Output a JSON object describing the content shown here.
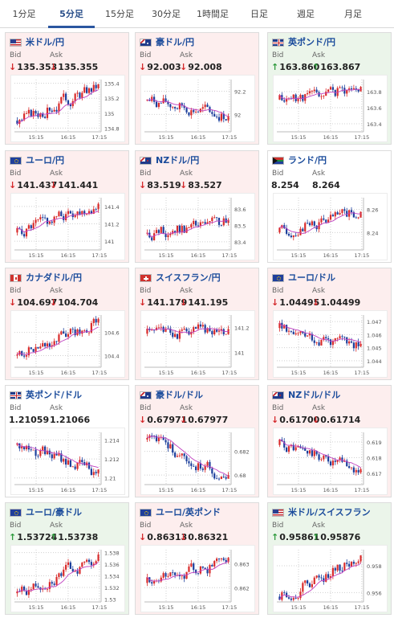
{
  "tabs": [
    "1分足",
    "5分足",
    "15分足",
    "30分足",
    "1時間足",
    "日足",
    "週足",
    "月足"
  ],
  "active_tab": 1,
  "x_labels": [
    "15:15",
    "16:15",
    "17:15"
  ],
  "labels": {
    "bid": "Bid",
    "ask": "Ask"
  },
  "colors": {
    "up_candle": "#d92b2b",
    "down_candle": "#1c3f9c",
    "ma_line": "#c040c0",
    "bid_down": "#d4272a",
    "bid_up": "#2e9a3c"
  },
  "cards": [
    {
      "pair": "米ドル/円",
      "flag": "us",
      "dir": "down",
      "bid": "135.353",
      "ask": "135.355",
      "ticks": [
        "135.4",
        "135.2",
        "135",
        "134.8"
      ],
      "yrange": [
        134.75,
        135.45
      ],
      "start": 134.9,
      "end": 135.38,
      "seed": 3
    },
    {
      "pair": "豪ドル/円",
      "flag": "au",
      "dir": "down",
      "bid": "92.003",
      "ask": "92.008",
      "ticks": [
        "92.2",
        "92"
      ],
      "yrange": [
        91.85,
        92.3
      ],
      "start": 92.12,
      "end": 91.98,
      "seed": 7
    },
    {
      "pair": "英ポンド/円",
      "flag": "gb",
      "dir": "up",
      "bid": "163.860",
      "ask": "163.867",
      "ticks": [
        "163.8",
        "163.6",
        "163.4"
      ],
      "yrange": [
        163.3,
        163.95
      ],
      "start": 163.7,
      "end": 163.85,
      "seed": 11
    },
    {
      "pair": "ユーロ/円",
      "flag": "eu",
      "dir": "down",
      "bid": "141.437",
      "ask": "141.441",
      "ticks": [
        "141.4",
        "141.2",
        "141"
      ],
      "yrange": [
        140.9,
        141.5
      ],
      "start": 141.1,
      "end": 141.44,
      "seed": 5
    },
    {
      "pair": "NZドル/円",
      "flag": "nz",
      "dir": "down",
      "bid": "83.519",
      "ask": "83.527",
      "ticks": [
        "83.6",
        "83.5",
        "83.4"
      ],
      "yrange": [
        83.35,
        83.67
      ],
      "start": 83.45,
      "end": 83.52,
      "seed": 13
    },
    {
      "pair": "ランド/円",
      "flag": "za",
      "dir": "flat",
      "bid": "8.254",
      "ask": "8.264",
      "ticks": [
        "8.26",
        "8.24"
      ],
      "yrange": [
        8.225,
        8.27
      ],
      "start": 8.24,
      "end": 8.258,
      "seed": 17
    },
    {
      "pair": "カナダドル/円",
      "flag": "ca",
      "dir": "down",
      "bid": "104.697",
      "ask": "104.704",
      "ticks": [
        "104.6",
        "104.4"
      ],
      "yrange": [
        104.3,
        104.75
      ],
      "start": 104.4,
      "end": 104.7,
      "seed": 19
    },
    {
      "pair": "スイスフラン/円",
      "flag": "ch",
      "dir": "down",
      "bid": "141.179",
      "ask": "141.195",
      "ticks": [
        "141.2",
        "141"
      ],
      "yrange": [
        140.88,
        141.3
      ],
      "start": 141.15,
      "end": 141.18,
      "seed": 23
    },
    {
      "pair": "ユーロ/ドル",
      "flag": "eu",
      "dir": "down",
      "bid": "1.04495",
      "ask": "1.04499",
      "ticks": [
        "1.047",
        "1.046",
        "1.045",
        "1.044"
      ],
      "yrange": [
        1.0435,
        1.0475
      ],
      "start": 1.0465,
      "end": 1.045,
      "seed": 29
    },
    {
      "pair": "英ポンド/ドル",
      "flag": "gb",
      "dir": "flat",
      "bid": "1.21059",
      "ask": "1.21066",
      "ticks": [
        "1.214",
        "1.212",
        "1.21"
      ],
      "yrange": [
        1.2093,
        1.2148
      ],
      "start": 1.2135,
      "end": 1.2106,
      "seed": 31
    },
    {
      "pair": "豪ドル/ドル",
      "flag": "au",
      "dir": "down",
      "bid": "0.67971",
      "ask": "0.67977",
      "ticks": [
        "0.682",
        "0.68"
      ],
      "yrange": [
        0.6792,
        0.6836
      ],
      "start": 0.683,
      "end": 0.6797,
      "seed": 37
    },
    {
      "pair": "NZドル/ドル",
      "flag": "nz",
      "dir": "down",
      "bid": "0.61700",
      "ask": "0.61714",
      "ticks": [
        "0.619",
        "0.618",
        "0.617"
      ],
      "yrange": [
        0.6163,
        0.6196
      ],
      "start": 0.6188,
      "end": 0.617,
      "seed": 41
    },
    {
      "pair": "ユーロ/豪ドル",
      "flag": "eu",
      "dir": "up",
      "bid": "1.53724",
      "ask": "1.53738",
      "ticks": [
        "1.538",
        "1.536",
        "1.534",
        "1.532",
        "1.53"
      ],
      "yrange": [
        1.5295,
        1.5385
      ],
      "start": 1.531,
      "end": 1.5375,
      "seed": 43
    },
    {
      "pair": "ユーロ/英ポンド",
      "flag": "eu",
      "dir": "down",
      "bid": "0.86313",
      "ask": "0.86321",
      "ticks": [
        "0.863",
        "0.862"
      ],
      "yrange": [
        0.8614,
        0.8636
      ],
      "start": 0.8622,
      "end": 0.8631,
      "seed": 47
    },
    {
      "pair": "米ドル/スイスフラン",
      "flag": "us",
      "dir": "up",
      "bid": "0.95861",
      "ask": "0.95876",
      "ticks": [
        "0.958",
        "0.956"
      ],
      "yrange": [
        0.9553,
        0.9592
      ],
      "start": 0.9557,
      "end": 0.9586,
      "seed": 53
    }
  ]
}
